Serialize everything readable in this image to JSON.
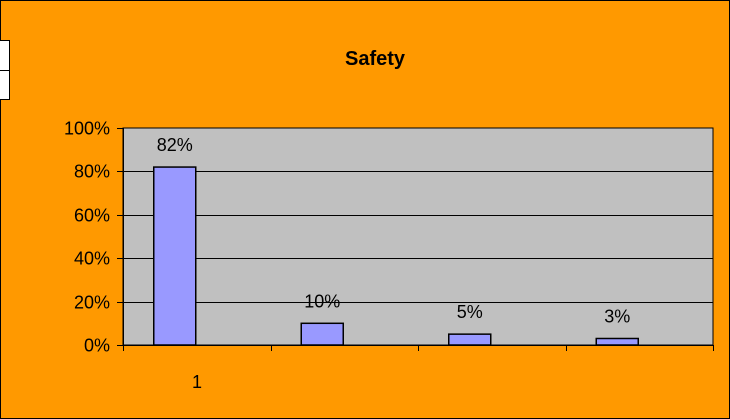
{
  "colors": {
    "chart_area": "#ff9900",
    "plot_area": "#c0c0c0",
    "bar_fill": "#9999ff",
    "bar_stroke": "#000000",
    "gridline": "#000000",
    "text": "#000000"
  },
  "chart_data": {
    "type": "bar",
    "title": "Safety",
    "xlabel": "",
    "ylabel": "",
    "categories": [
      "1"
    ],
    "series": [
      {
        "values": [
          0.82
        ]
      },
      {
        "values": [
          0.1
        ]
      },
      {
        "values": [
          0.05
        ]
      },
      {
        "values": [
          0.03
        ]
      }
    ],
    "data_labels": [
      "82%",
      "10%",
      "5%",
      "3%"
    ],
    "ylim": [
      0,
      1
    ],
    "yticks": [
      "0%",
      "20%",
      "40%",
      "60%",
      "80%",
      "100%"
    ],
    "grid": true,
    "legend": "none"
  }
}
